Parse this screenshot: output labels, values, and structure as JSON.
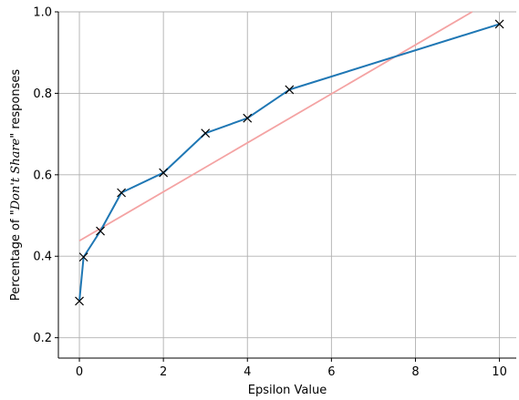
{
  "chart_data": {
    "type": "line",
    "title": "",
    "xlabel": "Epsilon Value",
    "ylabel": {
      "prefix": "Percentage of \"",
      "italic": "Don't Share",
      "suffix": "\" responses"
    },
    "xlim": [
      -0.5,
      10.4
    ],
    "ylim": [
      0.15,
      1.0
    ],
    "xticks": [
      0,
      2,
      4,
      6,
      8,
      10
    ],
    "xtick_labels": [
      "0",
      "2",
      "4",
      "6",
      "8",
      "10"
    ],
    "yticks": [
      0.2,
      0.4,
      0.6,
      0.8,
      1.0
    ],
    "ytick_labels": [
      "0.2",
      "0.4",
      "0.6",
      "0.8",
      "1.0"
    ],
    "grid": true,
    "series": [
      {
        "marker": "x",
        "color": "#1f77b4",
        "x": [
          0.0,
          0.1,
          0.5,
          1.0,
          2.0,
          3.0,
          4.0,
          5.0,
          10.0
        ],
        "y": [
          0.29,
          0.398,
          0.462,
          0.556,
          0.605,
          0.702,
          0.739,
          0.809,
          0.97
        ]
      }
    ],
    "trendline": {
      "color": "#f4a3a3",
      "x": [
        0.0,
        9.35
      ],
      "y": [
        0.438,
        1.0
      ]
    }
  }
}
